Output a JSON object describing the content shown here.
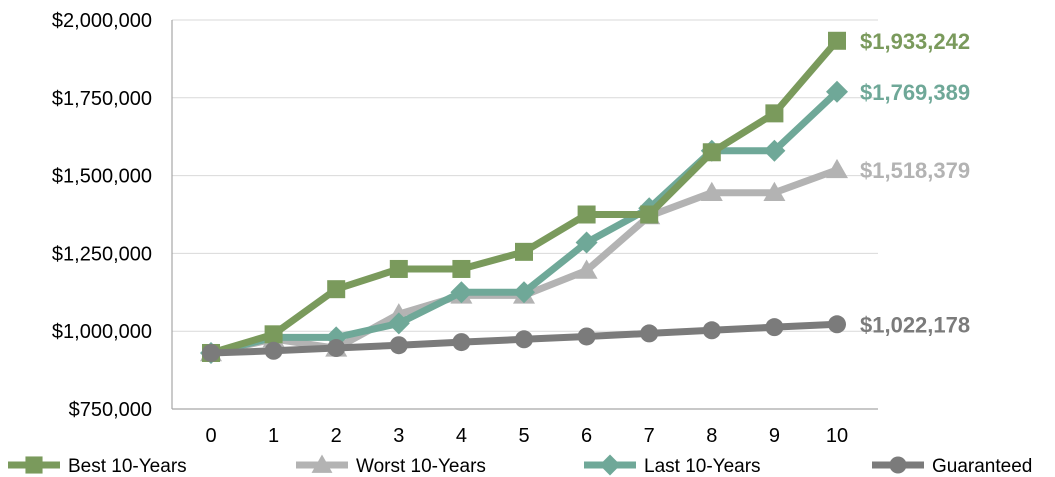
{
  "chart_data": {
    "type": "line",
    "x": [
      0,
      1,
      2,
      3,
      4,
      5,
      6,
      7,
      8,
      9,
      10
    ],
    "x_tick_labels": [
      "0",
      "1",
      "2",
      "3",
      "4",
      "5",
      "6",
      "7",
      "8",
      "9",
      "10"
    ],
    "ylim": [
      750000,
      2000000
    ],
    "y_ticks": [
      750000,
      1000000,
      1250000,
      1500000,
      1750000,
      2000000
    ],
    "y_tick_labels": [
      "$750,000",
      "$1,000,000",
      "$1,250,000",
      "$1,500,000",
      "$1,750,000",
      "$2,000,000"
    ],
    "grid": "horizontal",
    "legend_position": "bottom",
    "series": [
      {
        "name": "Best 10-Years",
        "marker": "square",
        "color": "#7a9a5c",
        "values": [
          930000,
          990000,
          1135000,
          1200000,
          1200000,
          1255000,
          1375000,
          1375000,
          1575000,
          1700000,
          1933242
        ],
        "end_label": "$1,933,242"
      },
      {
        "name": "Worst 10-Years",
        "marker": "triangle",
        "color": "#b3b3b3",
        "values": [
          930000,
          975000,
          945000,
          1055000,
          1115000,
          1115000,
          1195000,
          1370000,
          1445000,
          1445000,
          1518379
        ],
        "end_label": "$1,518,379"
      },
      {
        "name": "Last 10-Years",
        "marker": "diamond",
        "color": "#6fa898",
        "values": [
          930000,
          980000,
          980000,
          1025000,
          1125000,
          1125000,
          1285000,
          1395000,
          1580000,
          1580000,
          1769389
        ],
        "end_label": "$1,769,389"
      },
      {
        "name": "Guaranteed",
        "marker": "circle",
        "color": "#7b7b7b",
        "values": [
          930000,
          937000,
          946000,
          955000,
          965000,
          974000,
          983000,
          993000,
          1003000,
          1013000,
          1022178
        ],
        "end_label": "$1,022,178"
      }
    ]
  }
}
